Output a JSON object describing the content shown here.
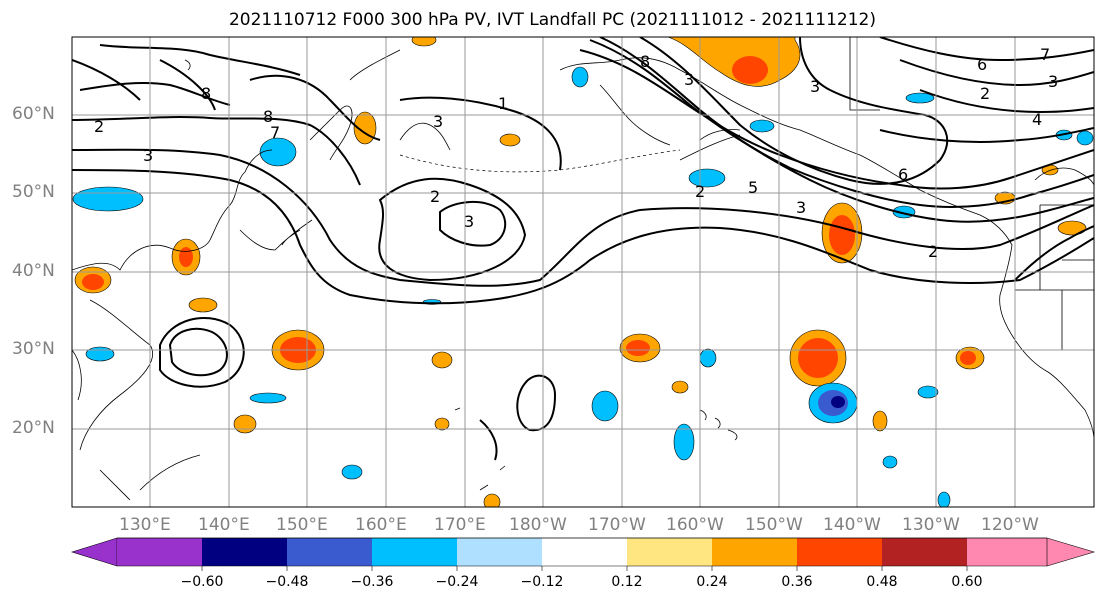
{
  "title": "2021110712 F000 300 hPa PV, IVT Landfall PC (2021111012 - 2021111212)",
  "map": {
    "extent": {
      "lon_min": 122,
      "lon_max": 252,
      "lat_min": 10,
      "lat_max": 70
    },
    "gridlines": true,
    "lat_labels": [
      "60°N",
      "50°N",
      "40°N",
      "30°N",
      "20°N"
    ],
    "lat_values": [
      60,
      50,
      40,
      30,
      20
    ],
    "lon_labels": [
      "130°E",
      "140°E",
      "150°E",
      "160°E",
      "170°E",
      "180°W",
      "170°W",
      "160°W",
      "150°W",
      "140°W",
      "130°W",
      "120°W"
    ],
    "lon_values": [
      130,
      140,
      150,
      160,
      170,
      180,
      190,
      200,
      210,
      220,
      230,
      240
    ],
    "pv_contour_labels": [
      "1",
      "2",
      "3",
      "4",
      "5",
      "6",
      "7",
      "8"
    ]
  },
  "colorbar": {
    "ticks": [
      "−0.60",
      "−0.48",
      "−0.36",
      "−0.24",
      "−0.12",
      "0.12",
      "0.24",
      "0.36",
      "0.48",
      "0.60"
    ],
    "colors": [
      "#9932cc",
      "#000080",
      "#3a5bd0",
      "#00bfff",
      "#b0e0ff",
      "#ffffff",
      "#ffe680",
      "#ffa500",
      "#ff4500",
      "#b22222",
      "#ff88b0"
    ],
    "extend": "both"
  }
}
